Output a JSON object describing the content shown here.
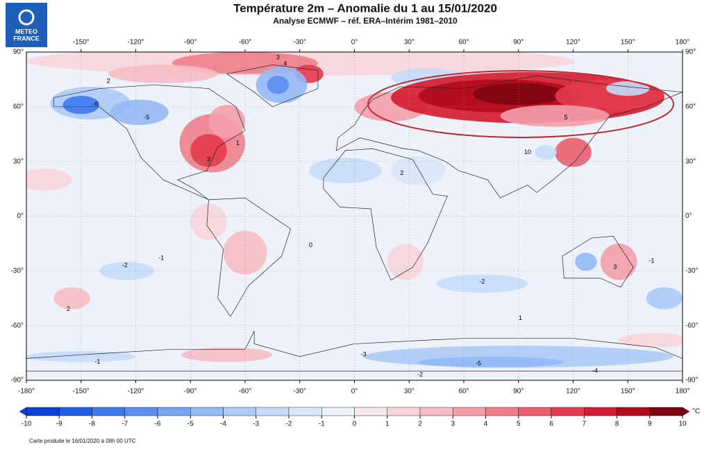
{
  "header": {
    "logo": [
      "METEO",
      "FRANCE"
    ],
    "title": "Température 2m – Anomalie du 1 au 15/01/2020",
    "subtitle": "Analyse ECMWF – réf. ERA–Intérim 1981–2010"
  },
  "map": {
    "lon_ticks_top": [
      {
        "value": -150,
        "label": "-150°"
      },
      {
        "value": -120,
        "label": "-120°"
      },
      {
        "value": -90,
        "label": "-90°"
      },
      {
        "value": -60,
        "label": "-60°"
      },
      {
        "value": -30,
        "label": "-30°"
      },
      {
        "value": 0,
        "label": "0°"
      },
      {
        "value": 30,
        "label": "30°"
      },
      {
        "value": 60,
        "label": "60°"
      },
      {
        "value": 90,
        "label": "90°"
      },
      {
        "value": 120,
        "label": "120°"
      },
      {
        "value": 150,
        "label": "150°"
      },
      {
        "value": 180,
        "label": "180°"
      }
    ],
    "lon_ticks_bottom": [
      {
        "value": -180,
        "label": "-180°"
      },
      {
        "value": -150,
        "label": "-150°"
      },
      {
        "value": -120,
        "label": "-120°"
      },
      {
        "value": -90,
        "label": "-90°"
      },
      {
        "value": -60,
        "label": "-60°"
      },
      {
        "value": -30,
        "label": "-30°"
      },
      {
        "value": 0,
        "label": "0°"
      },
      {
        "value": 30,
        "label": "30°"
      },
      {
        "value": 60,
        "label": "60°"
      },
      {
        "value": 90,
        "label": "90°"
      },
      {
        "value": 120,
        "label": "120°"
      },
      {
        "value": 150,
        "label": "150°"
      },
      {
        "value": 180,
        "label": "180°"
      }
    ],
    "lat_ticks": [
      {
        "value": 90,
        "label": "90°"
      },
      {
        "value": 60,
        "label": "60°"
      },
      {
        "value": 30,
        "label": "30°"
      },
      {
        "value": 0,
        "label": "0°"
      },
      {
        "value": -30,
        "label": "-30°"
      },
      {
        "value": -60,
        "label": "-60°"
      },
      {
        "value": -90,
        "label": "-90°"
      }
    ],
    "contour_labels": [
      3,
      4,
      2,
      -6,
      -5,
      3,
      1,
      -1,
      -2,
      2,
      -3,
      -5,
      -4,
      -2,
      -1,
      5,
      10,
      3,
      -2,
      0,
      1,
      2,
      -1
    ]
  },
  "colorbar": {
    "ticks": [
      -10,
      -9,
      -8,
      -7,
      -6,
      -5,
      -4,
      -3,
      -2,
      -1,
      0,
      1,
      2,
      3,
      4,
      5,
      6,
      7,
      8,
      9,
      10
    ],
    "colors": [
      "#0a3fd8",
      "#1f5ee8",
      "#3d78ec",
      "#5a8ff0",
      "#78a5f2",
      "#93b9f4",
      "#adcbf6",
      "#c4dbf8",
      "#d9e7fa",
      "#eaf1fb",
      "#f8e9ec",
      "#f7d5da",
      "#f5bcc3",
      "#f29ea8",
      "#ee7f8b",
      "#ea5d6c",
      "#e33a4c",
      "#d41a2e",
      "#b30a1c",
      "#7d0410"
    ],
    "unit": "°C"
  },
  "footer": "Carte produite le 16/01/2020 à 08h 00 UTC"
}
